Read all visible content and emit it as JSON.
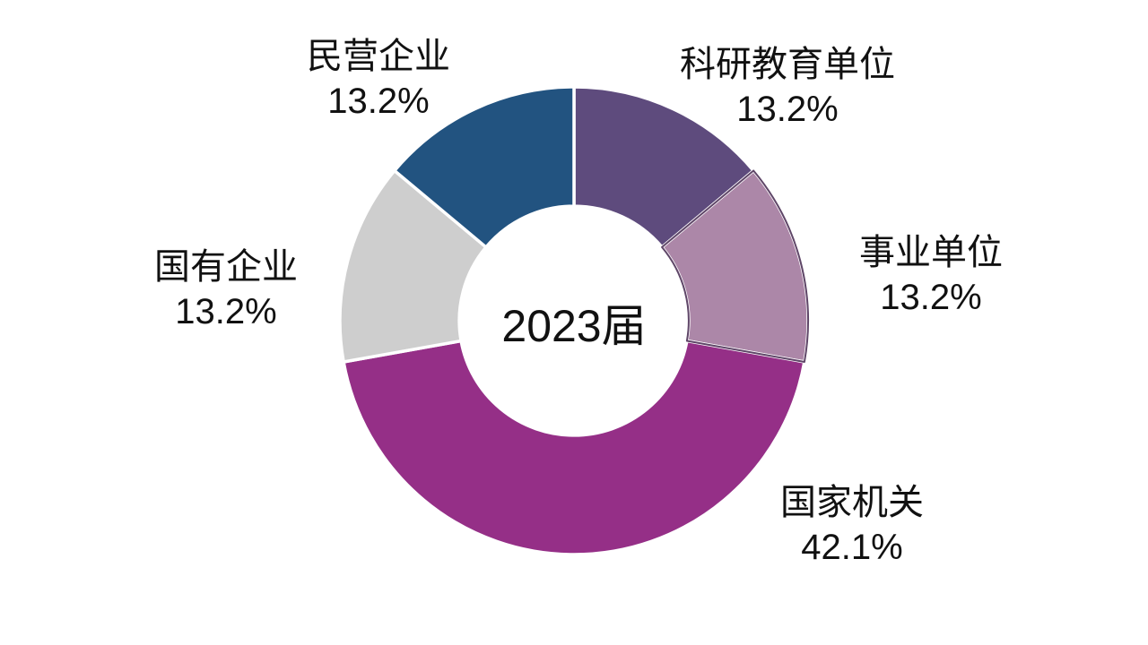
{
  "chart": {
    "center_label": "2023届",
    "background_color": "#FFFFFF",
    "text_color": "#111111"
  },
  "chart_data": {
    "type": "pie",
    "subtype": "donut",
    "title": "",
    "center_label": "2023届",
    "legend": "none",
    "label_style": "outside, two lines (category + percent)",
    "start_angle_deg": 0,
    "direction": "clockwise",
    "inner_radius_ratio": 0.49,
    "slices": [
      {
        "id": "research-education",
        "category": "科研教育单位",
        "value": 13.2,
        "label": "13.2%",
        "color": "#5E4B7D"
      },
      {
        "id": "public-institution",
        "category": "事业单位",
        "value": 13.2,
        "label": "13.2%",
        "color": "#AC87A8"
      },
      {
        "id": "government-agency",
        "category": "国家机关",
        "value": 42.1,
        "label": "42.1%",
        "color": "#952F87"
      },
      {
        "id": "state-owned-enterprise",
        "category": "国有企业",
        "value": 13.2,
        "label": "13.2%",
        "color": "#CECECE"
      },
      {
        "id": "private-enterprise",
        "category": "民营企业",
        "value": 13.2,
        "label": "13.2%",
        "color": "#225380"
      }
    ],
    "highlight": {
      "index": 1,
      "stroke": "#5F4668",
      "stroke_width": 2
    },
    "separator_color": "#FFFFFF"
  }
}
